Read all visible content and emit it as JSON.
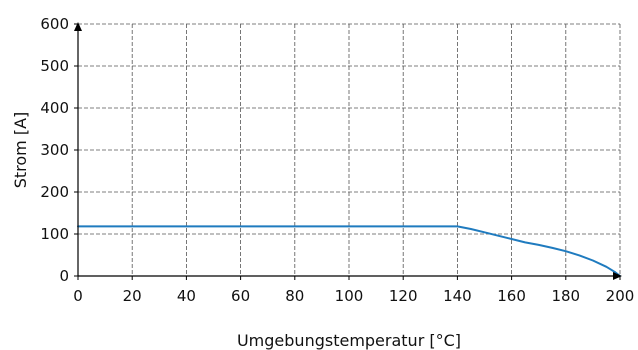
{
  "chart_data": {
    "type": "line",
    "title": "",
    "xlabel": "Umgebungstemperatur [°C]",
    "ylabel": "Strom [A]",
    "xlim": [
      0,
      200
    ],
    "ylim": [
      0,
      600
    ],
    "xticks": [
      0,
      20,
      40,
      60,
      80,
      100,
      120,
      140,
      160,
      180,
      200
    ],
    "yticks": [
      0,
      100,
      200,
      300,
      400,
      500,
      600
    ],
    "grid": true,
    "grid_style": "dashed",
    "legend": "none",
    "series": [
      {
        "color": "#1f7bbf",
        "x": [
          0,
          140,
          145,
          150,
          155,
          160,
          165,
          170,
          175,
          180,
          185,
          190,
          195,
          198,
          200
        ],
        "y": [
          118,
          118,
          112,
          104,
          96,
          88,
          80,
          74,
          67,
          59,
          49,
          37,
          22,
          10,
          0
        ]
      }
    ],
    "colors": {
      "axis": "#000000",
      "grid": "#555555"
    }
  }
}
